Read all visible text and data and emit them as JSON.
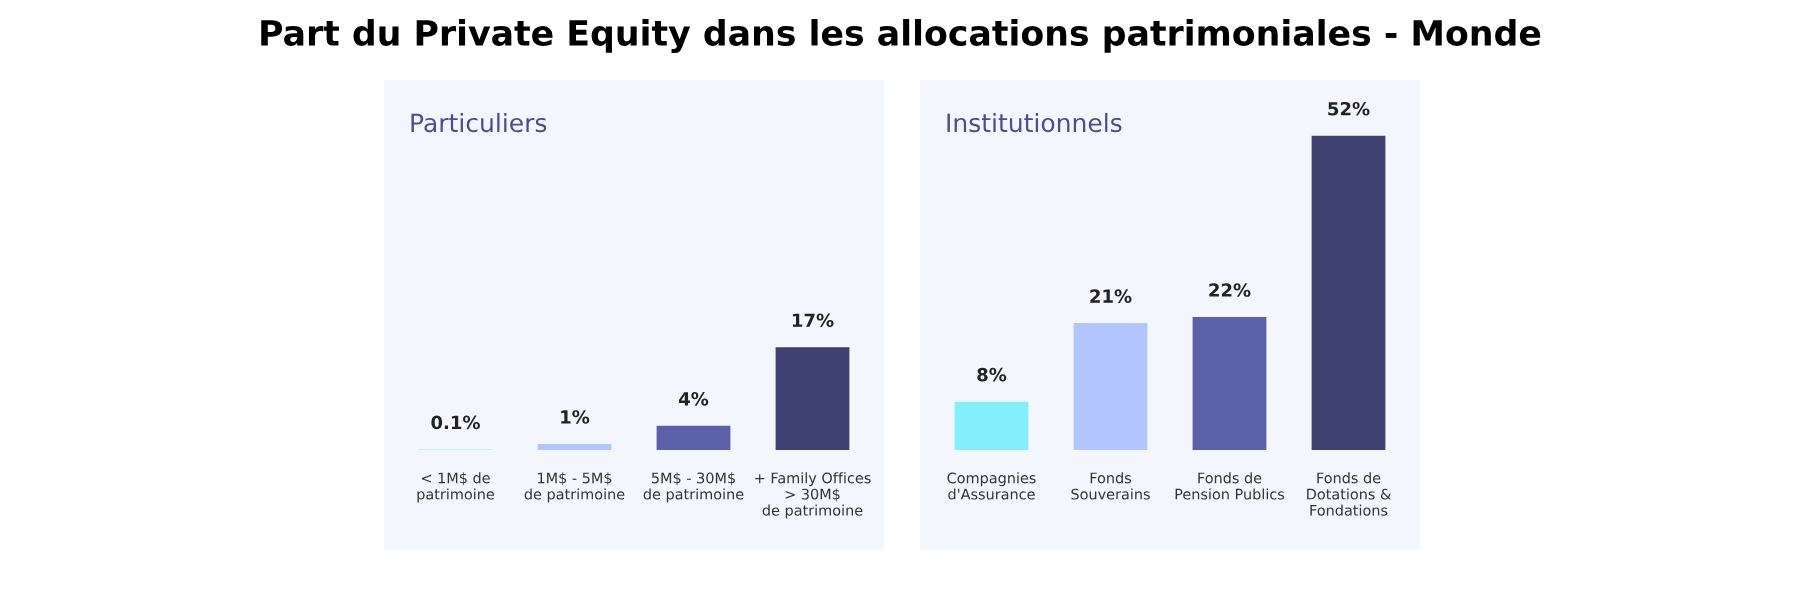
{
  "chart_data": [
    {
      "type": "bar",
      "title": "Part du Private Equity dans les allocations patrimoniales - Monde",
      "subtitle": "Particuliers",
      "categories": [
        "< 1M$ de\npatrimoine",
        "1M$ - 5M$\nde patrimoine",
        "5M$ - 30M$\nde patrimoine",
        "+ Family Offices\n> 30M$\nde patrimoine"
      ],
      "values": [
        0.1,
        1,
        4,
        17
      ],
      "colors": [
        "#84effc",
        "#b3c5ff",
        "#5b60a9",
        "#3e4070"
      ],
      "value_labels": [
        "0.1%",
        "1%",
        "4%",
        "17%"
      ]
    },
    {
      "type": "bar",
      "subtitle": "Institutionnels",
      "categories": [
        "Compagnies\nd'Assurance",
        "Fonds\nSouverains",
        "Fonds de\nPension Publics",
        "Fonds de\nDotations &\nFondations"
      ],
      "values": [
        8,
        21,
        22,
        52
      ],
      "colors": [
        "#84effc",
        "#b3c5ff",
        "#5b60a9",
        "#3e4070"
      ],
      "value_labels": [
        "8%",
        "21%",
        "22%",
        "52%"
      ]
    }
  ]
}
